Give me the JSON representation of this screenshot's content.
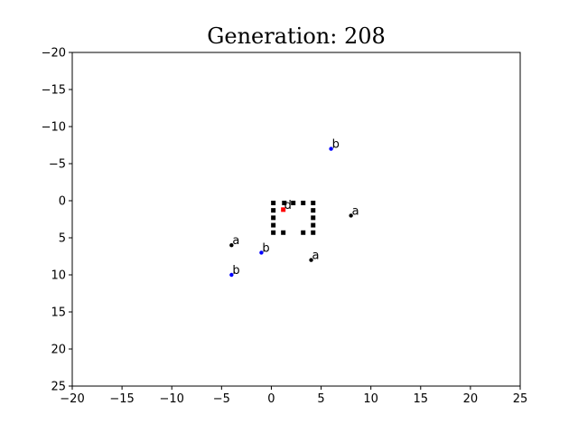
{
  "chart_data": {
    "type": "scatter",
    "title": "Generation: 208",
    "xlabel": "",
    "ylabel": "",
    "xlim": [
      -20,
      25
    ],
    "ylim": [
      -20,
      25
    ],
    "y_inverted": true,
    "grid": false,
    "xticks": [
      -20,
      -15,
      -10,
      -5,
      0,
      5,
      10,
      15,
      20,
      25
    ],
    "yticks": [
      -20,
      -15,
      -10,
      -5,
      0,
      5,
      10,
      15,
      20,
      25
    ],
    "xtick_labels": [
      "−20",
      "−15",
      "−10",
      "−5",
      "0",
      "5",
      "10",
      "15",
      "20",
      "25"
    ],
    "ytick_labels": [
      "−20",
      "−15",
      "−10",
      "−5",
      "0",
      "5",
      "10",
      "15",
      "20",
      "25"
    ],
    "series": [
      {
        "color": "#000000",
        "marker": "dot",
        "points": [
          {
            "x": 8,
            "y": 2,
            "label": "a"
          },
          {
            "x": -4,
            "y": 6,
            "label": "a"
          },
          {
            "x": 4,
            "y": 8,
            "label": "a"
          }
        ]
      },
      {
        "color": "#0000ff",
        "marker": "dot",
        "points": [
          {
            "x": 6,
            "y": -7,
            "label": "b"
          },
          {
            "x": -1,
            "y": 7,
            "label": "b"
          },
          {
            "x": -4,
            "y": 10,
            "label": "b"
          }
        ]
      },
      {
        "color": "#ff0000",
        "marker": "square",
        "points": [
          {
            "x": 1.2,
            "y": 1.2,
            "label": "d"
          }
        ]
      },
      {
        "color": "#000000",
        "marker": "square",
        "points": [
          {
            "x": 0.2,
            "y": 0.3
          },
          {
            "x": 1.3,
            "y": 0.3
          },
          {
            "x": 2.2,
            "y": 0.3
          },
          {
            "x": 3.2,
            "y": 0.3
          },
          {
            "x": 4.2,
            "y": 0.3
          },
          {
            "x": 0.2,
            "y": 1.3
          },
          {
            "x": 4.2,
            "y": 1.3
          },
          {
            "x": 0.2,
            "y": 2.3
          },
          {
            "x": 4.2,
            "y": 2.3
          },
          {
            "x": 0.2,
            "y": 3.3
          },
          {
            "x": 4.2,
            "y": 3.3
          },
          {
            "x": 0.2,
            "y": 4.3
          },
          {
            "x": 1.2,
            "y": 4.3
          },
          {
            "x": 3.2,
            "y": 4.3
          },
          {
            "x": 4.2,
            "y": 4.3
          }
        ]
      }
    ]
  }
}
